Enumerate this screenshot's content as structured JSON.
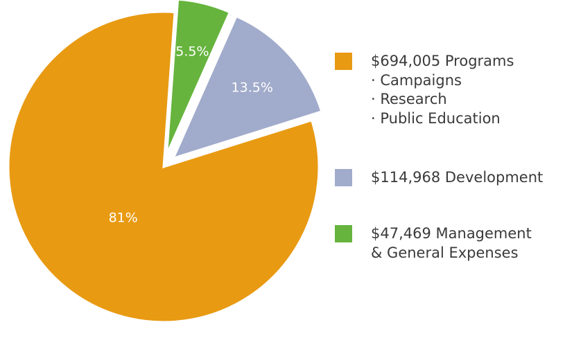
{
  "chart_data": {
    "type": "pie",
    "slices": [
      {
        "label": "$694,005 Programs",
        "sublabels": [
          "· Campaigns",
          "· Research",
          "· Public Education"
        ],
        "value": 81,
        "display": "81%",
        "color": "#e89a12",
        "exploded": false
      },
      {
        "label": "$47,469 Management",
        "sublabels": [
          "& General Expenses"
        ],
        "value": 5.5,
        "display": "5.5%",
        "color": "#66b43e",
        "exploded": true
      },
      {
        "label": "$114,968 Development",
        "sublabels": [],
        "value": 13.5,
        "display": "13.5%",
        "color": "#a1abcb",
        "exploded": true
      }
    ],
    "legend_order": [
      0,
      2,
      1
    ],
    "legend_position": "right"
  }
}
